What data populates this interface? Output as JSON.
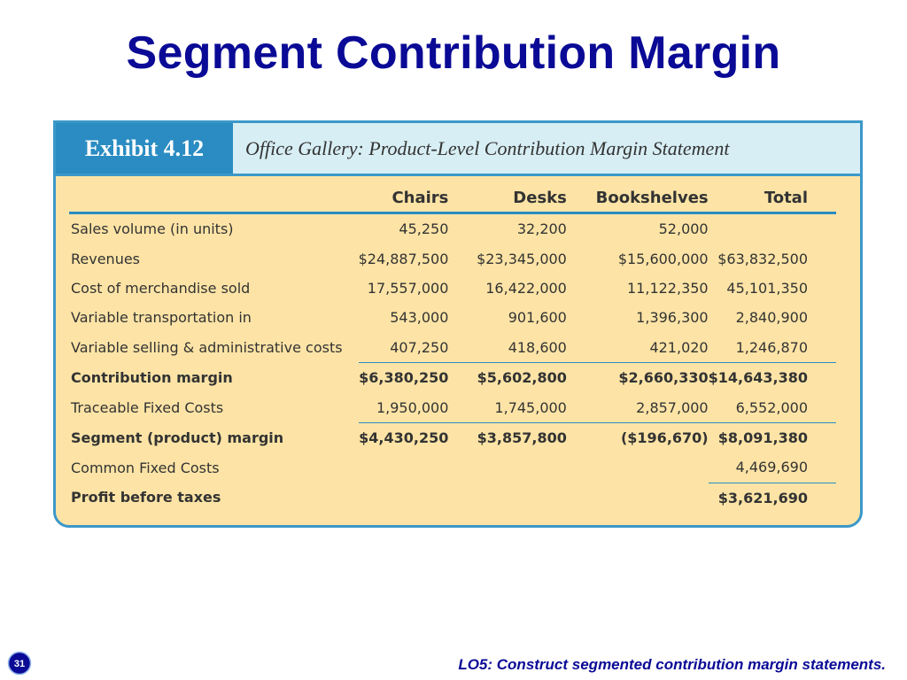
{
  "slide": {
    "title": "Segment Contribution Margin",
    "slide_number": "31",
    "footer": "LO5:  Construct segmented contribution margin statements."
  },
  "exhibit": {
    "tag": "Exhibit 4.12",
    "caption": "Office Gallery: Product-Level Contribution Margin Statement",
    "columns": [
      "",
      "Chairs",
      "Desks",
      "Bookshelves",
      "Total"
    ],
    "rows": [
      {
        "label": "Sales volume (in units)",
        "values": [
          "45,250",
          "32,200",
          "52,000",
          ""
        ],
        "bold": false
      },
      {
        "label": "Revenues",
        "values": [
          "$24,887,500",
          "$23,345,000",
          "$15,600,000",
          "$63,832,500"
        ],
        "bold": false
      },
      {
        "label": "Cost of merchandise sold",
        "values": [
          "17,557,000",
          "16,422,000",
          "11,122,350",
          "45,101,350"
        ],
        "bold": false
      },
      {
        "label": "Variable transportation in",
        "values": [
          "543,000",
          "901,600",
          "1,396,300",
          "2,840,900"
        ],
        "bold": false
      },
      {
        "label": "Variable selling & administrative costs",
        "values": [
          "407,250",
          "418,600",
          "421,020",
          "1,246,870"
        ],
        "bold": false
      },
      {
        "label": "Contribution margin",
        "values": [
          "$6,380,250",
          "$5,602,800",
          "$2,660,330",
          "$14,643,380"
        ],
        "bold": true
      },
      {
        "label": "Traceable Fixed Costs",
        "values": [
          "1,950,000",
          "1,745,000",
          "2,857,000",
          "6,552,000"
        ],
        "bold": false
      },
      {
        "label": "Segment (product) margin",
        "values": [
          "$4,430,250",
          "$3,857,800",
          "($196,670)",
          "$8,091,380"
        ],
        "bold": true
      },
      {
        "label": "Common Fixed Costs",
        "values": [
          "",
          "",
          "",
          "4,469,690"
        ],
        "bold": false
      },
      {
        "label": "Profit before taxes",
        "values": [
          "",
          "",
          "",
          "$3,621,690"
        ],
        "bold": true
      }
    ]
  },
  "colors": {
    "title": "#0a0a96",
    "panel_background": "#fde4a6",
    "panel_border": "#3c98c9",
    "tag_background": "#2a8cc2",
    "header_background": "#d7eef4",
    "footer_text": "#0a0a96",
    "slide_number_badge": "#0a0a96"
  }
}
